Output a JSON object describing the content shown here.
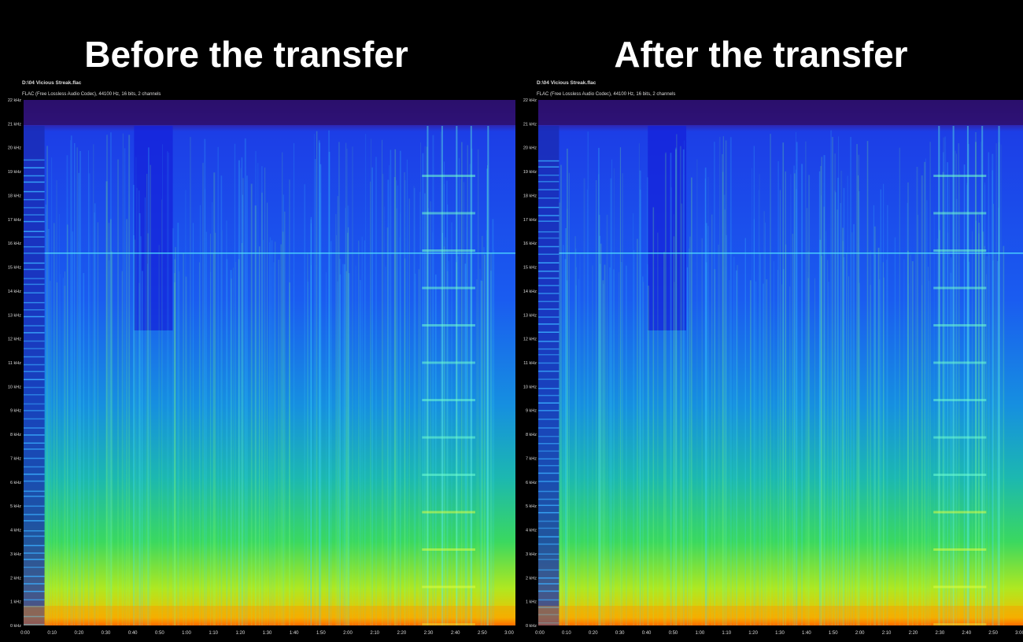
{
  "panels": [
    {
      "title": "Before the transfer",
      "file": "D:\\04 Vicious Streak.flac",
      "codec": "FLAC (Free Lossless Audio Codec), 44100 Hz, 16 bits, 2 channels",
      "y_labels": [
        "0 kHz",
        "1 kHz",
        "2 kHz",
        "3 kHz",
        "4 kHz",
        "5 kHz",
        "6 kHz",
        "7 kHz",
        "8 kHz",
        "9 kHz",
        "10 kHz",
        "11 kHz",
        "12 kHz",
        "13 kHz",
        "14 kHz",
        "15 kHz",
        "16 kHz",
        "17 kHz",
        "18 kHz",
        "19 kHz",
        "20 kHz",
        "21 kHz",
        "22 kHz"
      ],
      "x_labels": [
        "0:00",
        "0:10",
        "0:20",
        "0:30",
        "0:40",
        "0:50",
        "1:00",
        "1:10",
        "1:20",
        "1:30",
        "1:40",
        "1:50",
        "2:00",
        "2:10",
        "2:20",
        "2:30",
        "2:40",
        "2:50",
        "3:00"
      ]
    },
    {
      "title": "After the transfer",
      "file": "D:\\04 Vicious Streak.flac",
      "codec": "FLAC (Free Lossless Audio Codec), 44100 Hz, 16 bits, 2 channels",
      "y_labels": [
        "0 kHz",
        "1 kHz",
        "2 kHz",
        "3 kHz",
        "4 kHz",
        "5 kHz",
        "6 kHz",
        "7 kHz",
        "8 kHz",
        "9 kHz",
        "10 kHz",
        "11 kHz",
        "12 kHz",
        "13 kHz",
        "14 kHz",
        "15 kHz",
        "16 kHz",
        "17 kHz",
        "18 kHz",
        "19 kHz",
        "20 kHz",
        "21 kHz",
        "22 kHz"
      ],
      "x_labels": [
        "0:00",
        "0:10",
        "0:20",
        "0:30",
        "0:40",
        "0:50",
        "1:00",
        "1:10",
        "1:20",
        "1:30",
        "1:40",
        "1:50",
        "2:00",
        "2:10",
        "2:20",
        "2:30",
        "2:40",
        "2:50",
        "3:00"
      ]
    }
  ]
}
